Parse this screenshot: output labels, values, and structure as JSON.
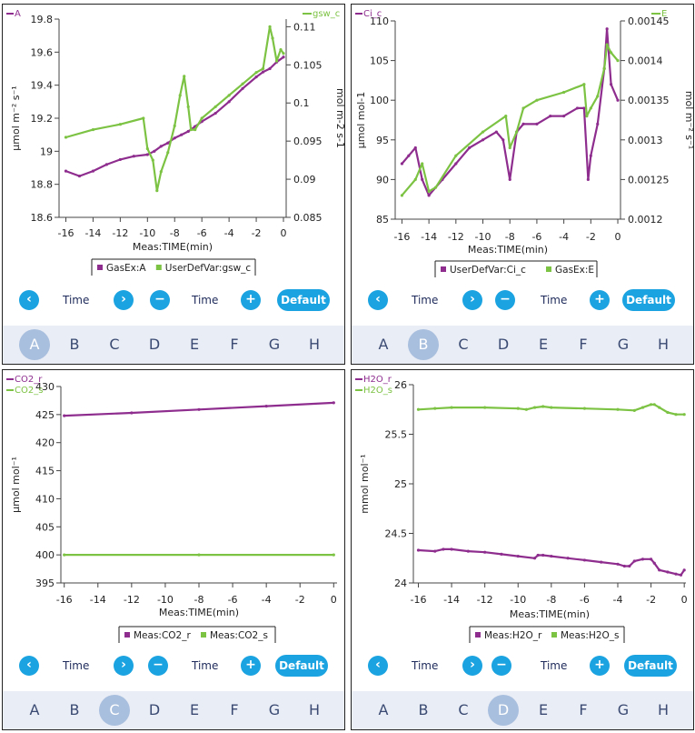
{
  "colors": {
    "purple": "#8e2d8e",
    "green": "#7cc243",
    "accent": "#1aa3e0",
    "tabbar": "#e9edf5",
    "tabActive": "#a9bfde"
  },
  "panels": [
    {
      "id": "A",
      "nav": {
        "prev_icon": "chevron-left",
        "left_label": "Time",
        "next_icon": "chevron-right",
        "minus_icon": "minus",
        "right_label": "Time",
        "plus_icon": "plus",
        "default_label": "Default"
      },
      "tabs": [
        "A",
        "B",
        "C",
        "D",
        "E",
        "F",
        "G",
        "H"
      ],
      "active_tab": 0,
      "chart_data": {
        "type": "line",
        "corner_left": "A",
        "corner_right": "gsw_c",
        "xlabel": "Meas:TIME(min)",
        "xlim": [
          -16.5,
          0.2
        ],
        "xticks": [
          "-16",
          "-14",
          "-12",
          "-10",
          "-8",
          "-6",
          "-4",
          "-2",
          "0"
        ],
        "ylabel_left": "μmol m⁻² s⁻¹",
        "ylim_left": [
          18.6,
          19.8
        ],
        "yticks_left": [
          "18.6",
          "18.8",
          "19",
          "19.2",
          "19.4",
          "19.6",
          "19.8"
        ],
        "ylabel_right": "mol m-2 s-1",
        "ylim_right": [
          0.085,
          0.111
        ],
        "yticks_right": [
          "0.085",
          "0.09",
          "0.095",
          "0.1",
          "0.105",
          "0.11"
        ],
        "legend": [
          "GasEx:A",
          "UserDefVar:gsw_c"
        ],
        "series": [
          {
            "name": "GasEx:A",
            "axis": "left",
            "color": "purple",
            "x": [
              -16,
              -15,
              -14,
              -13,
              -12,
              -11,
              -10,
              -9.5,
              -9,
              -8.5,
              -8,
              -7.5,
              -7,
              -6.5,
              -6,
              -5,
              -4,
              -3,
              -2,
              -1.5,
              -1,
              -0.5,
              0
            ],
            "y": [
              18.88,
              18.85,
              18.88,
              18.92,
              18.95,
              18.97,
              18.98,
              19,
              19.03,
              19.05,
              19.08,
              19.1,
              19.12,
              19.15,
              19.18,
              19.23,
              19.3,
              19.38,
              19.45,
              19.48,
              19.5,
              19.54,
              19.57
            ]
          },
          {
            "name": "UserDefVar:gsw_c",
            "axis": "right",
            "color": "green",
            "x": [
              -16,
              -14,
              -12,
              -10.3,
              -10,
              -9.6,
              -9.3,
              -9,
              -8.5,
              -8,
              -7.6,
              -7.3,
              -7,
              -6.8,
              -6.5,
              -6,
              -5,
              -4,
              -3,
              -2,
              -1.5,
              -1,
              -0.8,
              -0.5,
              -0.2,
              0
            ],
            "y": [
              0.0955,
              0.0965,
              0.0972,
              0.098,
              0.094,
              0.0925,
              0.0885,
              0.091,
              0.0935,
              0.097,
              0.101,
              0.1035,
              0.0995,
              0.0965,
              0.0965,
              0.098,
              0.0995,
              0.101,
              0.1025,
              0.104,
              0.1045,
              0.11,
              0.1085,
              0.1055,
              0.107,
              0.1065
            ]
          }
        ]
      }
    },
    {
      "id": "B",
      "nav": {
        "prev_icon": "chevron-left",
        "left_label": "Time",
        "next_icon": "chevron-right",
        "minus_icon": "minus",
        "right_label": "Time",
        "plus_icon": "plus",
        "default_label": "Default"
      },
      "tabs": [
        "A",
        "B",
        "C",
        "D",
        "E",
        "F",
        "G",
        "H"
      ],
      "active_tab": 1,
      "chart_data": {
        "type": "line",
        "corner_left": "Ci_c",
        "corner_right": "E",
        "xlabel": "Meas:TIME(min)",
        "xlim": [
          -16.5,
          0.2
        ],
        "xticks": [
          "-16",
          "-14",
          "-12",
          "-10",
          "-8",
          "-6",
          "-4",
          "-2",
          "0"
        ],
        "ylabel_left": "μmol mol-1",
        "ylim_left": [
          85,
          110
        ],
        "yticks_left": [
          "85",
          "90",
          "95",
          "100",
          "105",
          "110"
        ],
        "ylabel_right": "mol m⁻² s⁻¹",
        "ylim_right": [
          0.0012,
          0.00145
        ],
        "yticks_right": [
          "0.0012",
          "0.00125",
          "0.0013",
          "0.00135",
          "0.0014",
          "0.00145"
        ],
        "legend": [
          "UserDefVar:Ci_c",
          "GasEx:E"
        ],
        "series": [
          {
            "name": "UserDefVar:Ci_c",
            "axis": "left",
            "color": "purple",
            "x": [
              -16,
              -15.5,
              -15,
              -14.5,
              -14,
              -13,
              -12,
              -11,
              -10,
              -9,
              -8.5,
              -8,
              -7.5,
              -7,
              -6,
              -5,
              -4,
              -3,
              -2.5,
              -2.2,
              -2,
              -1.5,
              -1,
              -0.8,
              -0.5,
              0
            ],
            "y": [
              92,
              93,
              94,
              90,
              88,
              90,
              92,
              94,
              95,
              96,
              95,
              90,
              96,
              97,
              97,
              98,
              98,
              99,
              99,
              90,
              93,
              97,
              104,
              109,
              102,
              100
            ]
          },
          {
            "name": "GasEx:E",
            "axis": "right",
            "color": "green",
            "x": [
              -16,
              -15,
              -14.5,
              -14,
              -13.5,
              -12,
              -10,
              -8.3,
              -8,
              -7.5,
              -7,
              -6,
              -4,
              -2.5,
              -2.3,
              -2,
              -1.5,
              -1,
              -0.8,
              -0.5,
              0
            ],
            "y": [
              0.00123,
              0.00125,
              0.00127,
              0.001235,
              0.00124,
              0.00128,
              0.00131,
              0.00133,
              0.00129,
              0.00131,
              0.00134,
              0.00135,
              0.00136,
              0.00137,
              0.00133,
              0.00134,
              0.001355,
              0.00139,
              0.00142,
              0.00141,
              0.0014
            ]
          }
        ]
      }
    },
    {
      "id": "C",
      "nav": {
        "prev_icon": "chevron-left",
        "left_label": "Time",
        "next_icon": "chevron-right",
        "minus_icon": "minus",
        "right_label": "Time",
        "plus_icon": "plus",
        "default_label": "Default"
      },
      "tabs": [
        "A",
        "B",
        "C",
        "D",
        "E",
        "F",
        "G",
        "H"
      ],
      "active_tab": 2,
      "chart_data": {
        "type": "line",
        "corner_left": "CO2_r",
        "corner_left2": "CO2_s",
        "xlabel": "Meas:TIME(min)",
        "xlim": [
          -16.2,
          0.2
        ],
        "xticks": [
          "-16",
          "-14",
          "-12",
          "-10",
          "-8",
          "-6",
          "-4",
          "-2",
          "0"
        ],
        "ylabel_left": "μmol mol⁻¹",
        "ylim_left": [
          395,
          430
        ],
        "yticks_left": [
          "395",
          "400",
          "405",
          "410",
          "415",
          "420",
          "425",
          "430"
        ],
        "legend": [
          "Meas:CO2_r",
          "Meas:CO2_s"
        ],
        "series": [
          {
            "name": "Meas:CO2_r",
            "axis": "left",
            "color": "purple",
            "x": [
              -16,
              -12,
              -8,
              -4,
              0
            ],
            "y": [
              424.8,
              425.3,
              425.9,
              426.5,
              427.1
            ]
          },
          {
            "name": "Meas:CO2_s",
            "axis": "left",
            "color": "green",
            "x": [
              -16,
              -8,
              0
            ],
            "y": [
              400,
              400,
              400
            ]
          }
        ]
      }
    },
    {
      "id": "D",
      "nav": {
        "prev_icon": "chevron-left",
        "left_label": "Time",
        "next_icon": "chevron-right",
        "minus_icon": "minus",
        "right_label": "Time",
        "plus_icon": "plus",
        "default_label": "Default"
      },
      "tabs": [
        "A",
        "B",
        "C",
        "D",
        "E",
        "F",
        "G",
        "H"
      ],
      "active_tab": 3,
      "chart_data": {
        "type": "line",
        "corner_left": "H2O_r",
        "corner_left2": "H2O_s",
        "xlabel": "Meas:TIME(min)",
        "xlim": [
          -16.3,
          0.1
        ],
        "xticks": [
          "-16",
          "-14",
          "-12",
          "-10",
          "-8",
          "-6",
          "-4",
          "-2",
          "0"
        ],
        "ylabel_left": "mmol mol⁻¹",
        "ylim_left": [
          24,
          26
        ],
        "yticks_left": [
          "24",
          "24.5",
          "25",
          "25.5",
          "26"
        ],
        "legend": [
          "Meas:H2O_r",
          "Meas:H2O_s"
        ],
        "series": [
          {
            "name": "Meas:H2O_r",
            "axis": "left",
            "color": "purple",
            "x": [
              -16,
              -15,
              -14.5,
              -14,
              -13,
              -12,
              -11,
              -10,
              -9,
              -8.8,
              -8.5,
              -8,
              -7,
              -6,
              -5,
              -4,
              -3.6,
              -3.3,
              -3,
              -2.5,
              -2,
              -1.8,
              -1.5,
              -1,
              -0.5,
              -0.2,
              0
            ],
            "y": [
              24.33,
              24.32,
              24.34,
              24.34,
              24.32,
              24.31,
              24.29,
              24.27,
              24.25,
              24.28,
              24.28,
              24.27,
              24.25,
              24.23,
              24.21,
              24.19,
              24.17,
              24.17,
              24.22,
              24.24,
              24.24,
              24.2,
              24.13,
              24.11,
              24.09,
              24.08,
              24.13
            ]
          },
          {
            "name": "Meas:H2O_s",
            "axis": "left",
            "color": "green",
            "x": [
              -16,
              -15,
              -14,
              -12,
              -10,
              -9.5,
              -9,
              -8.5,
              -8,
              -6,
              -4,
              -3,
              -2.5,
              -2,
              -1.8,
              -1.5,
              -1,
              -0.5,
              0
            ],
            "y": [
              25.75,
              25.76,
              25.77,
              25.77,
              25.76,
              25.75,
              25.77,
              25.78,
              25.77,
              25.76,
              25.75,
              25.74,
              25.77,
              25.8,
              25.8,
              25.77,
              25.72,
              25.7,
              25.7
            ]
          }
        ]
      }
    }
  ]
}
